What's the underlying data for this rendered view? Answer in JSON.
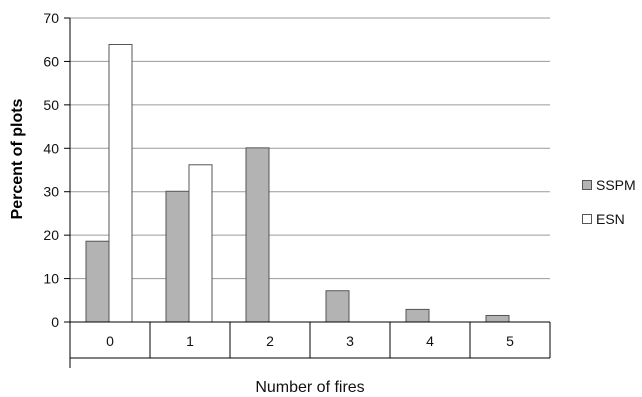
{
  "chart_data": {
    "type": "bar",
    "categories": [
      "0",
      "1",
      "2",
      "3",
      "4",
      "5"
    ],
    "series": [
      {
        "name": "SSPM",
        "values": [
          18.6,
          30.1,
          40.1,
          7.2,
          2.9,
          1.5
        ],
        "color": "#b3b3b3"
      },
      {
        "name": "ESN",
        "values": [
          63.9,
          36.2,
          0,
          0,
          0,
          0
        ],
        "color": "#ffffff"
      }
    ],
    "y_ticks": [
      "0",
      "10",
      "20",
      "30",
      "40",
      "50",
      "60",
      "70"
    ],
    "ylim": [
      0,
      70
    ],
    "xlabel": "Number of fires",
    "ylabel": "Percent of plots",
    "grid": true,
    "legend_position": "right"
  }
}
